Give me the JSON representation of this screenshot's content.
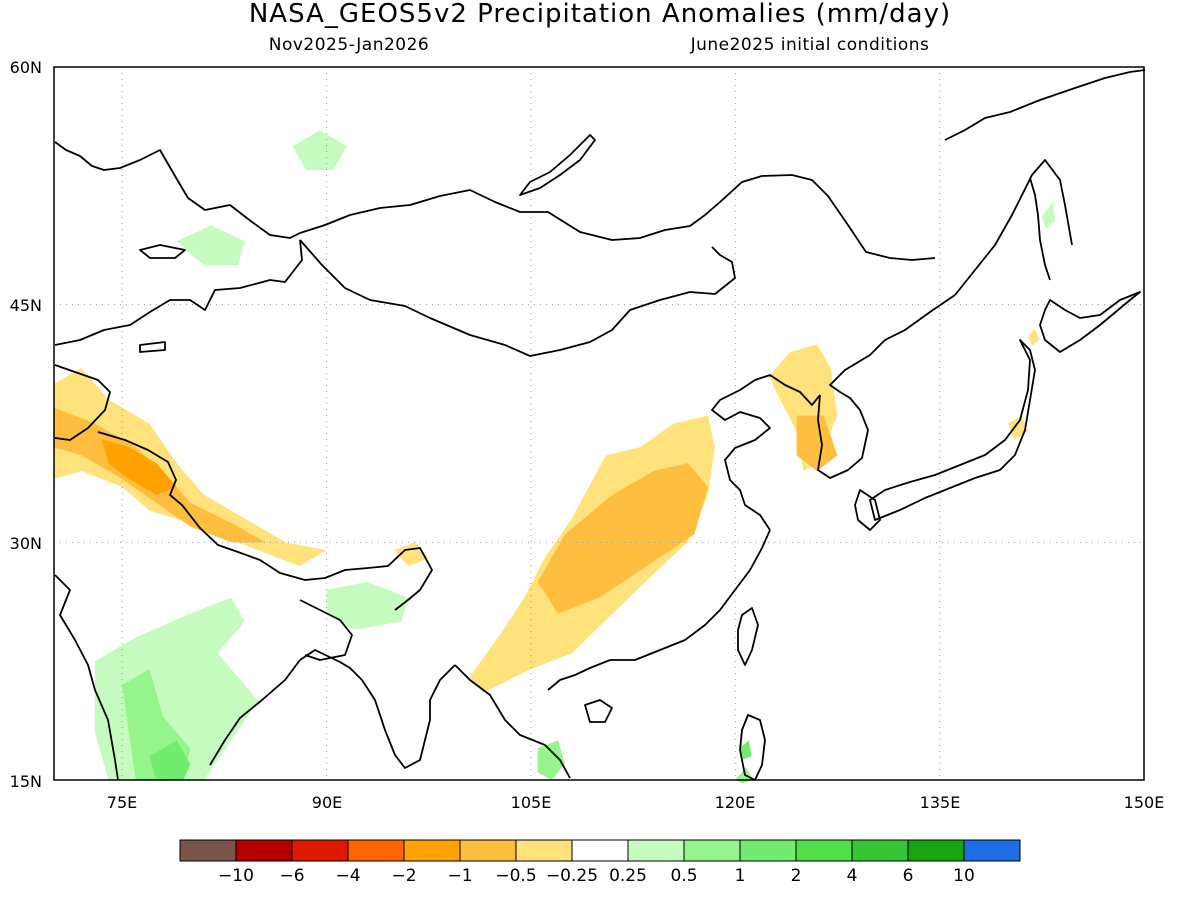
{
  "header": {
    "title": "NASA_GEOS5v2 Precipitation Anomalies (mm/day)",
    "period": "Nov2025-Jan2026",
    "init": "June2025 initial conditions"
  },
  "map": {
    "lon_range": [
      70,
      150
    ],
    "lat_range": [
      15,
      60
    ],
    "lat_labels": [
      "60N",
      "45N",
      "30N",
      "15N"
    ],
    "lon_labels": [
      "75E",
      "90E",
      "105E",
      "120E",
      "135E",
      "150E"
    ],
    "grid": "dotted",
    "land_base_color": "#ffffff",
    "coast_color": "#000000"
  },
  "colorbar": {
    "colors": [
      "#7a5548",
      "#b50000",
      "#de1b00",
      "#ff6400",
      "#ffa100",
      "#fdbe40",
      "#ffe27b",
      "#ffffff",
      "#c6fbc0",
      "#96f48c",
      "#72ec6e",
      "#4fe049",
      "#38c535",
      "#15a50f",
      "#1e6de4"
    ],
    "labels": [
      "−10",
      "−6",
      "−4",
      "−2",
      "−1",
      "−0.5",
      "−0.25",
      "0.25",
      "0.5",
      "1",
      "2",
      "4",
      "6",
      "10"
    ]
  },
  "anomaly_regions": [
    {
      "name": "yangtze-outer",
      "level": "-0.25",
      "color": "#ffe27b",
      "points": [
        [
          110.5,
          35.5
        ],
        [
          113,
          36
        ],
        [
          115.5,
          37.5
        ],
        [
          118,
          38
        ],
        [
          118.5,
          36
        ],
        [
          118,
          33
        ],
        [
          116.5,
          30
        ],
        [
          114,
          28
        ],
        [
          111,
          25.5
        ],
        [
          108,
          23
        ],
        [
          105,
          22
        ],
        [
          101.5,
          20.5
        ],
        [
          100.5,
          21.5
        ],
        [
          103,
          24.5
        ],
        [
          104.5,
          26.5
        ],
        [
          106,
          29
        ],
        [
          108,
          31.5
        ]
      ]
    },
    {
      "name": "yangtze-inner",
      "level": "-0.5",
      "color": "#fdbe40",
      "points": [
        [
          111,
          33
        ],
        [
          114,
          34.5
        ],
        [
          116.5,
          35
        ],
        [
          118,
          33.5
        ],
        [
          117,
          30.5
        ],
        [
          113.5,
          28.5
        ],
        [
          110,
          26.5
        ],
        [
          107,
          25.5
        ],
        [
          105.5,
          27.5
        ],
        [
          107.5,
          30.5
        ]
      ]
    },
    {
      "name": "himalaya-outer",
      "level": "-0.25",
      "color": "#ffe27b",
      "points": [
        [
          70,
          40
        ],
        [
          72,
          41
        ],
        [
          74,
          39
        ],
        [
          77,
          37.5
        ],
        [
          79,
          35
        ],
        [
          81,
          33
        ],
        [
          84,
          31.5
        ],
        [
          87,
          30
        ],
        [
          90,
          29.5
        ],
        [
          88,
          28.5
        ],
        [
          85,
          29.5
        ],
        [
          82,
          30.5
        ],
        [
          79,
          31.5
        ],
        [
          77,
          32
        ],
        [
          75,
          33.5
        ],
        [
          72,
          34.5
        ],
        [
          70,
          34
        ]
      ]
    },
    {
      "name": "himalaya-inner",
      "level": "-0.5",
      "color": "#fdbe40",
      "points": [
        [
          70,
          38.5
        ],
        [
          73,
          37.5
        ],
        [
          76,
          36
        ],
        [
          78.5,
          34
        ],
        [
          80,
          32.5
        ],
        [
          83.5,
          31
        ],
        [
          85.5,
          30
        ],
        [
          83,
          30
        ],
        [
          80,
          31
        ],
        [
          77.5,
          32.5
        ],
        [
          75,
          34
        ],
        [
          72,
          35.5
        ],
        [
          70,
          36
        ]
      ]
    },
    {
      "name": "karakoram-core",
      "level": "-1",
      "color": "#ffa100",
      "points": [
        [
          73.5,
          36.5
        ],
        [
          75.5,
          36
        ],
        [
          77.5,
          35
        ],
        [
          79,
          33.5
        ],
        [
          77.5,
          33
        ],
        [
          75.5,
          34
        ],
        [
          74,
          35
        ]
      ]
    },
    {
      "name": "korea-outer",
      "level": "-0.25",
      "color": "#ffe27b",
      "points": [
        [
          122.5,
          40.5
        ],
        [
          124,
          42
        ],
        [
          126,
          42.5
        ],
        [
          127,
          41
        ],
        [
          127.5,
          38
        ],
        [
          126,
          35
        ],
        [
          125,
          34.5
        ],
        [
          124.5,
          37
        ],
        [
          123,
          39.5
        ]
      ]
    },
    {
      "name": "korea-inner",
      "level": "-0.5",
      "color": "#fdbe40",
      "points": [
        [
          124.5,
          38
        ],
        [
          126.5,
          38
        ],
        [
          127.5,
          35.5
        ],
        [
          126,
          34.5
        ],
        [
          124.5,
          35.5
        ]
      ]
    },
    {
      "name": "japan-a",
      "level": "-0.25",
      "color": "#ffe27b",
      "points": [
        [
          140,
          37.5
        ],
        [
          141,
          38
        ],
        [
          141.5,
          37
        ],
        [
          140.5,
          36.5
        ]
      ]
    },
    {
      "name": "hokkaido-a",
      "level": "-0.25",
      "color": "#ffe27b",
      "points": [
        [
          141.5,
          43
        ],
        [
          142,
          43.5
        ],
        [
          142.3,
          42.8
        ],
        [
          141.8,
          42.4
        ]
      ]
    },
    {
      "name": "tibet-east-a",
      "level": "-0.25",
      "color": "#ffe27b",
      "points": [
        [
          95,
          29.5
        ],
        [
          96.5,
          30
        ],
        [
          97.5,
          29
        ],
        [
          96,
          28.5
        ]
      ]
    },
    {
      "name": "india-green-outer",
      "level": "0.25",
      "color": "#c6fbc0",
      "points": [
        [
          73,
          22.5
        ],
        [
          76,
          24
        ],
        [
          80,
          25.5
        ],
        [
          83,
          26.5
        ],
        [
          84,
          25
        ],
        [
          82,
          23
        ],
        [
          85,
          20
        ],
        [
          83,
          17.5
        ],
        [
          81,
          15
        ],
        [
          74,
          15
        ],
        [
          73,
          18
        ]
      ]
    },
    {
      "name": "india-green-inner",
      "level": "0.5",
      "color": "#96f48c",
      "points": [
        [
          75,
          21
        ],
        [
          77,
          22
        ],
        [
          78,
          19
        ],
        [
          80,
          17
        ],
        [
          79.5,
          15
        ],
        [
          76,
          15
        ],
        [
          75.5,
          18
        ]
      ]
    },
    {
      "name": "india-green-core",
      "level": "1",
      "color": "#72ec6e",
      "points": [
        [
          77,
          16.5
        ],
        [
          79,
          17.5
        ],
        [
          80,
          16
        ],
        [
          79.5,
          15
        ],
        [
          77.5,
          15
        ]
      ]
    },
    {
      "name": "assam-green",
      "level": "0.25",
      "color": "#c6fbc0",
      "points": [
        [
          90,
          27
        ],
        [
          93,
          27.5
        ],
        [
          96,
          26.5
        ],
        [
          95.5,
          25
        ],
        [
          92,
          24.5
        ],
        [
          90,
          25.5
        ]
      ]
    },
    {
      "name": "kazakh-green",
      "level": "0.25",
      "color": "#c6fbc0",
      "points": [
        [
          79,
          49
        ],
        [
          81.5,
          50
        ],
        [
          84,
          49
        ],
        [
          83.5,
          47.5
        ],
        [
          81,
          47.5
        ]
      ]
    },
    {
      "name": "altai-green",
      "level": "0.25",
      "color": "#c6fbc0",
      "points": [
        [
          87.5,
          55
        ],
        [
          89.5,
          56
        ],
        [
          91.5,
          55
        ],
        [
          90.5,
          53.5
        ],
        [
          88.5,
          53.5
        ]
      ]
    },
    {
      "name": "vietnam-green",
      "level": "0.5",
      "color": "#96f48c",
      "points": [
        [
          105.5,
          17
        ],
        [
          107,
          17.5
        ],
        [
          107.5,
          16
        ],
        [
          106.5,
          15
        ],
        [
          105.5,
          15.5
        ]
      ]
    },
    {
      "name": "taiwan-green",
      "level": "1",
      "color": "#72ec6e",
      "points": [
        [
          120.3,
          17
        ],
        [
          121,
          17.5
        ],
        [
          121.2,
          16.5
        ],
        [
          120.6,
          16.3
        ]
      ]
    },
    {
      "name": "luzon-green",
      "level": "0.5",
      "color": "#96f48c",
      "points": [
        [
          120,
          15
        ],
        [
          120.8,
          15.8
        ],
        [
          121.3,
          15
        ],
        [
          120.5,
          14.8
        ]
      ]
    },
    {
      "name": "sakhalin-green",
      "level": "0.25",
      "color": "#c6fbc0",
      "points": [
        [
          142.5,
          50.5
        ],
        [
          143.3,
          51.5
        ],
        [
          143.5,
          50.3
        ],
        [
          142.8,
          49.8
        ]
      ]
    }
  ]
}
